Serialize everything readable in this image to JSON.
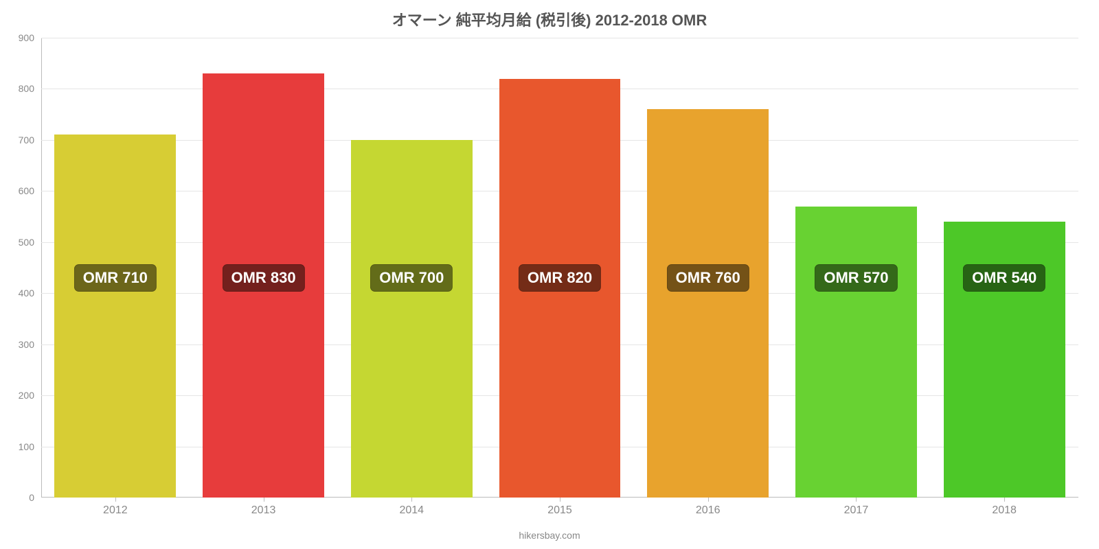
{
  "chart": {
    "type": "bar",
    "title": "オマーン 純平均月給 (税引後) 2012-2018 OMR",
    "title_fontsize": 22,
    "title_color": "#555555",
    "attribution": "hikersbay.com",
    "background_color": "#ffffff",
    "grid_color": "#e5e5e5",
    "axis_color": "#bbbbbb",
    "tick_label_color": "#888888",
    "y_tick_fontsize": 14,
    "x_tick_fontsize": 16,
    "ylim": [
      0,
      900
    ],
    "ytick_step": 100,
    "categories": [
      "2012",
      "2013",
      "2014",
      "2015",
      "2016",
      "2017",
      "2018"
    ],
    "values": [
      710,
      830,
      700,
      820,
      760,
      570,
      540
    ],
    "value_labels": [
      "OMR 710",
      "OMR 830",
      "OMR 700",
      "OMR 820",
      "OMR 760",
      "OMR 570",
      "OMR 540"
    ],
    "bar_colors": [
      "#d7cd34",
      "#e73c3c",
      "#c5d732",
      "#e8572d",
      "#e8a32d",
      "#68d232",
      "#4dc828"
    ],
    "label_bg_colors": [
      "#6c661a",
      "#74201d",
      "#636c19",
      "#742c17",
      "#745217",
      "#346919",
      "#276414"
    ],
    "label_text_color": "#ffffff",
    "label_fontsize": 22,
    "bar_width_ratio": 0.82,
    "label_y_value": 430
  }
}
